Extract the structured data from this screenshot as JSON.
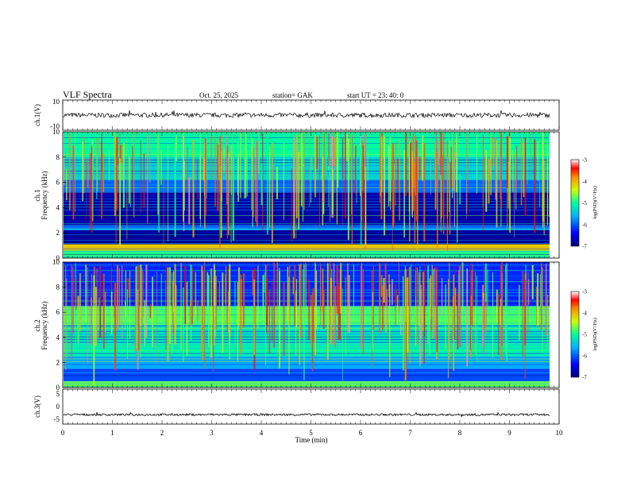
{
  "header": {
    "title": "VLF  Spectra",
    "date": "Oct. 25, 2025",
    "station": "station= GAK",
    "start_ut": "start  UT  =    23: 40: 0"
  },
  "colors": {
    "colormap": [
      "#00007a",
      "#0000ff",
      "#00b4ff",
      "#00ff9a",
      "#cfff00",
      "#ff8c00",
      "#ff0000",
      "#ffffff"
    ],
    "trace": "#000000"
  },
  "chart_data": [
    {
      "type": "line",
      "panel": "ch1-waveform",
      "ylabel": "ch.1(V)",
      "ylim": [
        -10,
        10
      ],
      "yticks": [
        "10",
        "-10"
      ],
      "xlim": [
        0,
        10
      ],
      "description_values": {
        "mean": 0,
        "amplitude": 1.5
      }
    },
    {
      "type": "heatmap",
      "panel": "ch1-spectrogram",
      "ylabel": "ch.1\nFrequency  (kHz)",
      "ylabel_line1": "ch.1",
      "ylabel_line2": "Frequency  (kHz)",
      "yticks": [
        "0",
        "2",
        "4",
        "6",
        "8",
        "10"
      ],
      "ylim": [
        0,
        10
      ],
      "xlim": [
        0,
        10
      ],
      "colorbar": {
        "label": "log(PSD)(V²/Hz)",
        "ticks": [
          "-3",
          "-4",
          "-5",
          "-6",
          "-7"
        ],
        "range": [
          -7,
          -3
        ]
      },
      "bands": [
        {
          "from": 0,
          "to": 0.6,
          "level": -5.2
        },
        {
          "from": 0.6,
          "to": 1.1,
          "level": -4.4
        },
        {
          "from": 1.1,
          "to": 2.2,
          "level": -6.9
        },
        {
          "from": 2.2,
          "to": 2.6,
          "level": -6.0
        },
        {
          "from": 2.6,
          "to": 5.2,
          "level": -6.8
        },
        {
          "from": 5.2,
          "to": 6.2,
          "level": -6.1
        },
        {
          "from": 6.2,
          "to": 8.0,
          "level": -5.6
        },
        {
          "from": 8.0,
          "to": 10.0,
          "level": -5.3
        }
      ]
    },
    {
      "type": "heatmap",
      "panel": "ch2-spectrogram",
      "ylabel_line1": "ch.2",
      "ylabel_line2": "Frequency  (kHz)",
      "yticks": [
        "0",
        "2",
        "4",
        "6",
        "8",
        "10"
      ],
      "ylim": [
        0,
        10
      ],
      "xlim": [
        0,
        10
      ],
      "colorbar": {
        "label": "log(PSD)(V²/Hz)",
        "ticks": [
          "-3",
          "-4",
          "-5",
          "-6",
          "-7"
        ],
        "range": [
          -7,
          -3
        ]
      },
      "bands": [
        {
          "from": 0,
          "to": 0.5,
          "level": -5.0
        },
        {
          "from": 0.5,
          "to": 1.5,
          "level": -6.2
        },
        {
          "from": 1.5,
          "to": 2.5,
          "level": -5.9
        },
        {
          "from": 2.5,
          "to": 3.5,
          "level": -5.4
        },
        {
          "from": 3.5,
          "to": 5.0,
          "level": -5.5
        },
        {
          "from": 5.0,
          "to": 6.5,
          "level": -5.1
        },
        {
          "from": 6.5,
          "to": 10.0,
          "level": -6.3
        }
      ]
    },
    {
      "type": "line",
      "panel": "ch3-waveform",
      "ylabel": "ch.3(V)",
      "ylim": [
        -5,
        5
      ],
      "yticks": [
        "5",
        "0",
        "-5"
      ],
      "xlim": [
        0,
        10
      ],
      "description_values": {
        "mean": -2.3,
        "amplitude": 0.3
      }
    }
  ],
  "xaxis": {
    "label": "Time  (min)",
    "ticks": [
      "0",
      "1",
      "2",
      "3",
      "4",
      "5",
      "6",
      "7",
      "8",
      "9",
      "10"
    ],
    "range": [
      0,
      10
    ]
  }
}
